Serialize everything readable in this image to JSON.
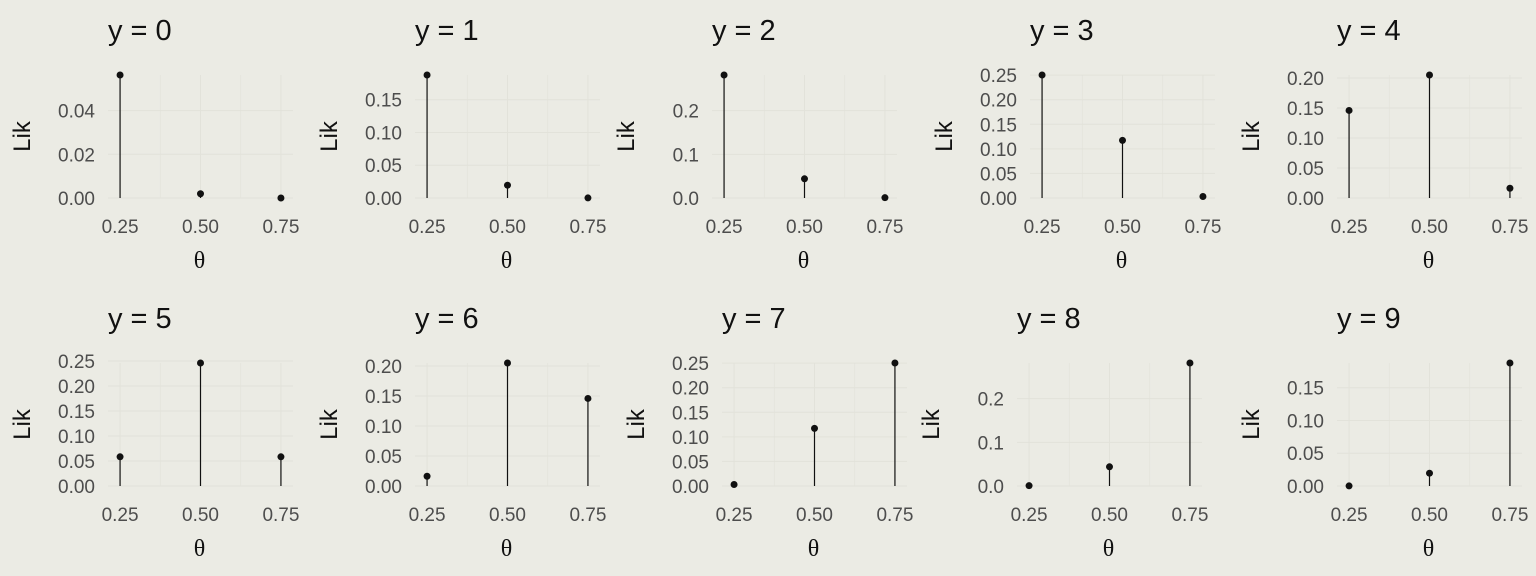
{
  "chart_data": [
    {
      "type": "lollipop",
      "title": "y = 0",
      "xlabel": "θ",
      "ylabel": "Lik",
      "x": [
        0.25,
        0.5,
        0.75
      ],
      "values": [
        0.0563,
        0.00195,
        3.81e-06
      ],
      "xticks": [
        "0.25",
        "0.50",
        "0.75"
      ],
      "yticks": [
        "0.00",
        "0.02",
        "0.04"
      ],
      "yticks_values": [
        0,
        0.02,
        0.04
      ],
      "ylim": [
        0,
        0.0563
      ],
      "grid": true
    },
    {
      "type": "lollipop",
      "title": "y = 1",
      "xlabel": "θ",
      "ylabel": "Lik",
      "x": [
        0.25,
        0.5,
        0.75
      ],
      "values": [
        0.1877,
        0.01953,
        0.000114
      ],
      "xticks": [
        "0.25",
        "0.50",
        "0.75"
      ],
      "yticks": [
        "0.00",
        "0.05",
        "0.10",
        "0.15"
      ],
      "yticks_values": [
        0,
        0.05,
        0.1,
        0.15
      ],
      "ylim": [
        0,
        0.1877
      ],
      "grid": true
    },
    {
      "type": "lollipop",
      "title": "y = 2",
      "xlabel": "θ",
      "ylabel": "Lik",
      "x": [
        0.25,
        0.5,
        0.75
      ],
      "values": [
        0.2816,
        0.04395,
        0.000772
      ],
      "xticks": [
        "0.25",
        "0.50",
        "0.75"
      ],
      "yticks": [
        "0.0",
        "0.1",
        "0.2"
      ],
      "yticks_values": [
        0,
        0.1,
        0.2
      ],
      "ylim": [
        0,
        0.2816
      ],
      "grid": true
    },
    {
      "type": "lollipop",
      "title": "y = 3",
      "xlabel": "θ",
      "ylabel": "Lik",
      "x": [
        0.25,
        0.5,
        0.75
      ],
      "values": [
        0.2503,
        0.1172,
        0.0031
      ],
      "xticks": [
        "0.25",
        "0.50",
        "0.75"
      ],
      "yticks": [
        "0.00",
        "0.05",
        "0.10",
        "0.15",
        "0.20",
        "0.25"
      ],
      "yticks_values": [
        0,
        0.05,
        0.1,
        0.15,
        0.2,
        0.25
      ],
      "ylim": [
        0,
        0.2503
      ],
      "grid": true
    },
    {
      "type": "lollipop",
      "title": "y = 4",
      "xlabel": "θ",
      "ylabel": "Lik",
      "x": [
        0.25,
        0.5,
        0.75
      ],
      "values": [
        0.146,
        0.2051,
        0.0162
      ],
      "xticks": [
        "0.25",
        "0.50",
        "0.75"
      ],
      "yticks": [
        "0.00",
        "0.05",
        "0.10",
        "0.15",
        "0.20"
      ],
      "yticks_values": [
        0,
        0.05,
        0.1,
        0.15,
        0.2
      ],
      "ylim": [
        0,
        0.2051
      ],
      "grid": true
    },
    {
      "type": "lollipop",
      "title": "y = 5",
      "xlabel": "θ",
      "ylabel": "Lik",
      "x": [
        0.25,
        0.5,
        0.75
      ],
      "values": [
        0.0584,
        0.2461,
        0.0584
      ],
      "xticks": [
        "0.25",
        "0.50",
        "0.75"
      ],
      "yticks": [
        "0.00",
        "0.05",
        "0.10",
        "0.15",
        "0.20",
        "0.25"
      ],
      "yticks_values": [
        0,
        0.05,
        0.1,
        0.15,
        0.2,
        0.25
      ],
      "ylim": [
        0,
        0.2461
      ],
      "grid": true
    },
    {
      "type": "lollipop",
      "title": "y = 6",
      "xlabel": "θ",
      "ylabel": "Lik",
      "x": [
        0.25,
        0.5,
        0.75
      ],
      "values": [
        0.0162,
        0.2051,
        0.146
      ],
      "xticks": [
        "0.25",
        "0.50",
        "0.75"
      ],
      "yticks": [
        "0.00",
        "0.05",
        "0.10",
        "0.15",
        "0.20"
      ],
      "yticks_values": [
        0,
        0.05,
        0.1,
        0.15,
        0.2
      ],
      "ylim": [
        0,
        0.2051
      ],
      "grid": true
    },
    {
      "type": "lollipop",
      "title": "y = 7",
      "xlabel": "θ",
      "ylabel": "Lik",
      "x": [
        0.25,
        0.5,
        0.75
      ],
      "values": [
        0.0031,
        0.1172,
        0.2503
      ],
      "xticks": [
        "0.25",
        "0.50",
        "0.75"
      ],
      "yticks": [
        "0.00",
        "0.05",
        "0.10",
        "0.15",
        "0.20",
        "0.25"
      ],
      "yticks_values": [
        0,
        0.05,
        0.1,
        0.15,
        0.2,
        0.25
      ],
      "ylim": [
        0,
        0.2503
      ],
      "grid": true
    },
    {
      "type": "lollipop",
      "title": "y = 8",
      "xlabel": "θ",
      "ylabel": "Lik",
      "x": [
        0.25,
        0.5,
        0.75
      ],
      "values": [
        0.000772,
        0.04395,
        0.2816
      ],
      "xticks": [
        "0.25",
        "0.50",
        "0.75"
      ],
      "yticks": [
        "0.0",
        "0.1",
        "0.2"
      ],
      "yticks_values": [
        0,
        0.1,
        0.2
      ],
      "ylim": [
        0,
        0.2816
      ],
      "grid": true
    },
    {
      "type": "lollipop",
      "title": "y = 9",
      "xlabel": "θ",
      "ylabel": "Lik",
      "x": [
        0.25,
        0.5,
        0.75
      ],
      "values": [
        0.000114,
        0.01953,
        0.1877
      ],
      "xticks": [
        "0.25",
        "0.50",
        "0.75"
      ],
      "yticks": [
        "0.00",
        "0.05",
        "0.10",
        "0.15"
      ],
      "yticks_values": [
        0,
        0.05,
        0.1,
        0.15
      ],
      "ylim": [
        0,
        0.1877
      ],
      "grid": true
    }
  ],
  "colors": {
    "background": "#ebebe4",
    "grid": "#e2e2da",
    "mark": "#111111",
    "text": "#111111",
    "tick_text": "#4d4d4d"
  }
}
